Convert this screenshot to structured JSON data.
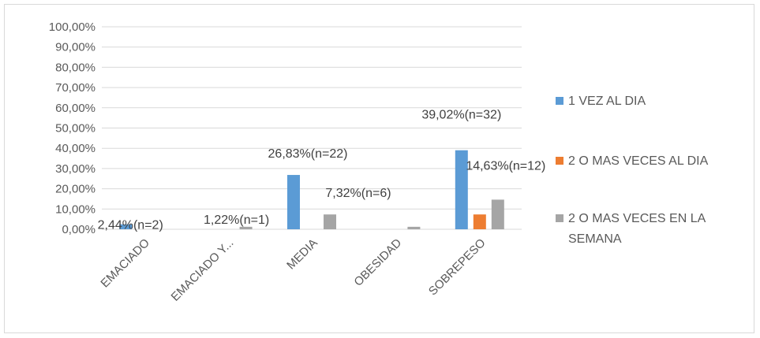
{
  "chart_data": {
    "type": "bar",
    "categories": [
      "EMACIADO",
      "EMACIADO Y...",
      "MEDIA",
      "OBESIDAD",
      "SOBREPESO"
    ],
    "series": [
      {
        "name": "1 VEZ AL DIA",
        "color": "#5b9bd5",
        "values": [
          2.44,
          0,
          26.83,
          0,
          39.02
        ]
      },
      {
        "name": "2 O MAS VECES AL DIA",
        "color": "#ed7d31",
        "values": [
          0,
          0,
          0,
          0,
          7.32
        ]
      },
      {
        "name": "2 O MAS VECES EN LA SEMANA",
        "color": "#a5a5a5",
        "values": [
          0,
          1.22,
          7.32,
          1.22,
          14.63
        ]
      }
    ],
    "data_labels": [
      {
        "text": "2,44%(n=2)",
        "category": 0,
        "series": 0
      },
      {
        "text": "1,22%(n=1)",
        "category": 1,
        "series": 2
      },
      {
        "text": "26,83%(n=22)",
        "category": 2,
        "series": 0
      },
      {
        "text": "7,32%(n=6)",
        "category": 2,
        "series": 2
      },
      {
        "text": "39,02%(n=32)",
        "category": 4,
        "series": 0
      },
      {
        "text": "14,63%(n=12)",
        "category": 4,
        "series": 2
      }
    ],
    "y_ticks": [
      "0,00%",
      "10,00%",
      "20,00%",
      "30,00%",
      "40,00%",
      "50,00%",
      "60,00%",
      "70,00%",
      "80,00%",
      "90,00%",
      "100,00%"
    ],
    "ylim": [
      0,
      100
    ],
    "grid": true,
    "legend_position": "right",
    "title": "",
    "xlabel": "",
    "ylabel": ""
  }
}
